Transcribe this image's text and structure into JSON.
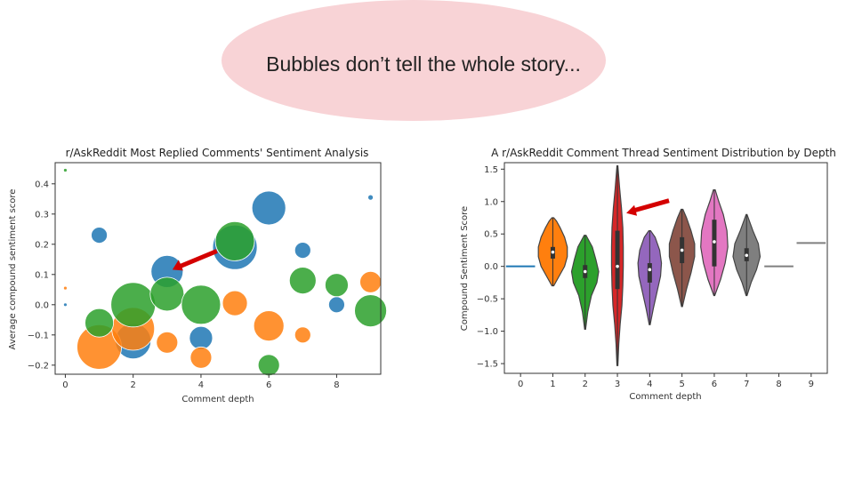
{
  "callout": {
    "text": "Bubbles don’t tell the whole story...",
    "fill": "#f8d3d6"
  },
  "chart_data": [
    {
      "type": "scatter",
      "title": "r/AskReddit Most Replied Comments' Sentiment Analysis",
      "xlabel": "Comment depth",
      "ylabel": "Average compound sentiment score",
      "xlim": [
        -0.3,
        9.3
      ],
      "ylim": [
        -0.23,
        0.47
      ],
      "xticks": [
        "0",
        "2",
        "4",
        "6",
        "8"
      ],
      "yticks": [
        "0.4",
        "0.3",
        "0.2",
        "0.1",
        "0.0",
        "−0.1",
        "−0.2"
      ],
      "grid": false,
      "bubble_size_note": "size encodes reply count",
      "series": [
        {
          "color": "#1f77b4",
          "points": [
            [
              0,
              0.0,
              2
            ],
            [
              1,
              0.23,
              9
            ],
            [
              2,
              -0.12,
              20
            ],
            [
              3,
              0.11,
              18
            ],
            [
              4,
              -0.11,
              13
            ],
            [
              5,
              0.19,
              25
            ],
            [
              6,
              0.32,
              19
            ],
            [
              7,
              0.18,
              9
            ],
            [
              8,
              0.0,
              9
            ],
            [
              9,
              0.355,
              3
            ]
          ]
        },
        {
          "color": "#ff7f0e",
          "points": [
            [
              0,
              0.055,
              2
            ],
            [
              1,
              -0.14,
              25
            ],
            [
              2,
              -0.08,
              24
            ],
            [
              3,
              -0.125,
              12
            ],
            [
              4,
              -0.175,
              12
            ],
            [
              5,
              0.005,
              14
            ],
            [
              6,
              -0.07,
              17
            ],
            [
              7,
              -0.1,
              9
            ],
            [
              9,
              0.075,
              12
            ]
          ]
        },
        {
          "color": "#2ca02c",
          "points": [
            [
              0,
              0.445,
              2
            ],
            [
              1,
              -0.06,
              16
            ],
            [
              2,
              0.0,
              25
            ],
            [
              3,
              0.035,
              19
            ],
            [
              4,
              0.0,
              22
            ],
            [
              5,
              0.21,
              22
            ],
            [
              6,
              -0.2,
              12
            ],
            [
              7,
              0.08,
              15
            ],
            [
              8,
              0.065,
              13
            ],
            [
              9,
              -0.02,
              18
            ]
          ]
        }
      ],
      "annotation": {
        "type": "red-arrow",
        "points_to": [
          3,
          0.11
        ]
      }
    },
    {
      "type": "violin",
      "title": "A r/AskReddit Comment Thread Sentiment Distribution by Depth",
      "xlabel": "Comment depth",
      "ylabel": "Compound Sentiment Score",
      "categories": [
        "0",
        "1",
        "2",
        "3",
        "4",
        "5",
        "6",
        "7",
        "8",
        "9"
      ],
      "ylim": [
        -1.65,
        1.6
      ],
      "yticks": [
        "1.5",
        "1.0",
        "0.5",
        "0.0",
        "−0.5",
        "−1.0",
        "−1.5"
      ],
      "grid": false,
      "violins": [
        {
          "cat": 0,
          "kind": "flat",
          "value": 0.0,
          "color": "#1f77b4"
        },
        {
          "cat": 1,
          "color": "#ff7f0e",
          "min": -0.3,
          "max": 0.75,
          "q1": 0.12,
          "med": 0.22,
          "q3": 0.3,
          "profile": [
            [
              -0.3,
              0.01
            ],
            [
              -0.15,
              0.07
            ],
            [
              0.0,
              0.13
            ],
            [
              0.15,
              0.16
            ],
            [
              0.3,
              0.16
            ],
            [
              0.45,
              0.13
            ],
            [
              0.6,
              0.08
            ],
            [
              0.7,
              0.04
            ],
            [
              0.75,
              0.01
            ]
          ]
        },
        {
          "cat": 2,
          "color": "#2ca02c",
          "min": -0.97,
          "max": 0.48,
          "q1": -0.18,
          "med": -0.08,
          "q3": 0.02,
          "profile": [
            [
              -0.97,
              0.005
            ],
            [
              -0.7,
              0.03
            ],
            [
              -0.45,
              0.07
            ],
            [
              -0.25,
              0.13
            ],
            [
              -0.08,
              0.15
            ],
            [
              0.1,
              0.12
            ],
            [
              0.3,
              0.08
            ],
            [
              0.48,
              0.01
            ]
          ]
        },
        {
          "cat": 3,
          "color": "#d62728",
          "min": -1.53,
          "max": 1.55,
          "q1": -0.35,
          "med": 0.0,
          "q3": 0.55,
          "profile": [
            [
              -1.53,
              0.005
            ],
            [
              -1.2,
              0.015
            ],
            [
              -0.9,
              0.03
            ],
            [
              -0.6,
              0.05
            ],
            [
              -0.3,
              0.06
            ],
            [
              0.0,
              0.065
            ],
            [
              0.3,
              0.065
            ],
            [
              0.6,
              0.06
            ],
            [
              0.9,
              0.045
            ],
            [
              1.2,
              0.025
            ],
            [
              1.55,
              0.005
            ]
          ]
        },
        {
          "cat": 4,
          "color": "#9467bd",
          "min": -0.9,
          "max": 0.55,
          "q1": -0.25,
          "med": -0.05,
          "q3": 0.05,
          "profile": [
            [
              -0.9,
              0.005
            ],
            [
              -0.65,
              0.04
            ],
            [
              -0.4,
              0.08
            ],
            [
              -0.15,
              0.12
            ],
            [
              0.05,
              0.13
            ],
            [
              0.25,
              0.11
            ],
            [
              0.45,
              0.06
            ],
            [
              0.55,
              0.01
            ]
          ]
        },
        {
          "cat": 5,
          "color": "#8c564b",
          "min": -0.62,
          "max": 0.88,
          "q1": 0.05,
          "med": 0.25,
          "q3": 0.45,
          "profile": [
            [
              -0.62,
              0.005
            ],
            [
              -0.35,
              0.05
            ],
            [
              -0.1,
              0.1
            ],
            [
              0.15,
              0.14
            ],
            [
              0.35,
              0.14
            ],
            [
              0.55,
              0.1
            ],
            [
              0.75,
              0.05
            ],
            [
              0.88,
              0.01
            ]
          ]
        },
        {
          "cat": 6,
          "color": "#e377c2",
          "min": -0.45,
          "max": 1.18,
          "q1": 0.0,
          "med": 0.38,
          "q3": 0.72,
          "profile": [
            [
              -0.45,
              0.005
            ],
            [
              -0.2,
              0.07
            ],
            [
              0.05,
              0.12
            ],
            [
              0.3,
              0.15
            ],
            [
              0.55,
              0.14
            ],
            [
              0.8,
              0.1
            ],
            [
              1.0,
              0.05
            ],
            [
              1.18,
              0.01
            ]
          ]
        },
        {
          "cat": 7,
          "color": "#7f7f7f",
          "min": -0.45,
          "max": 0.8,
          "q1": 0.08,
          "med": 0.17,
          "q3": 0.28,
          "profile": [
            [
              -0.45,
              0.005
            ],
            [
              -0.25,
              0.05
            ],
            [
              -0.05,
              0.11
            ],
            [
              0.15,
              0.15
            ],
            [
              0.35,
              0.13
            ],
            [
              0.55,
              0.07
            ],
            [
              0.8,
              0.005
            ]
          ]
        },
        {
          "cat": 8,
          "kind": "flat",
          "value": 0.0,
          "color": "#7f7f7f"
        },
        {
          "cat": 9,
          "kind": "flat",
          "value": 0.36,
          "color": "#7f7f7f"
        }
      ],
      "annotation": {
        "type": "red-arrow",
        "points_to": [
          3,
          0.85
        ]
      }
    }
  ]
}
